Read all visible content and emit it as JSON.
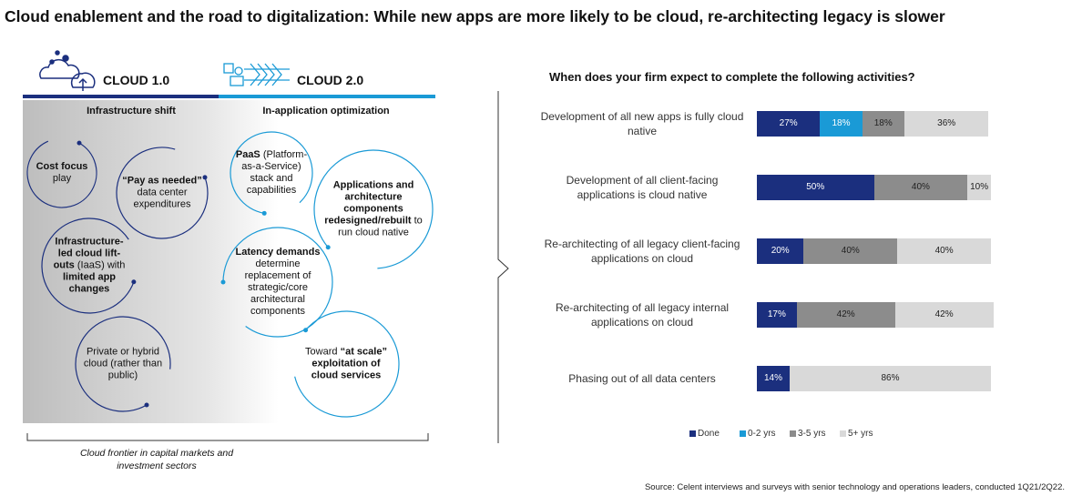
{
  "title": "Cloud enablement and the road to digitalization: While new apps are more likely to be cloud, re-architecting legacy is slower",
  "diagram": {
    "cloud1": {
      "label": "CLOUD 1.0",
      "subtitle": "Infrastructure shift"
    },
    "cloud2": {
      "label": "CLOUD 2.0",
      "subtitle": "In-application optimization"
    },
    "circles": [
      {
        "parts": [
          {
            "text": "Cost focus",
            "bold": true
          },
          {
            "text": " play"
          }
        ]
      },
      {
        "parts": [
          {
            "text": "“Pay as needed”",
            "bold": true
          },
          {
            "text": " data center expenditures"
          }
        ]
      },
      {
        "parts": [
          {
            "text": "Infrastructure-led cloud lift-outs",
            "bold": true
          },
          {
            "text": " (IaaS) with "
          },
          {
            "text": "limited app changes",
            "bold": true
          }
        ]
      },
      {
        "parts": [
          {
            "text": "Private or hybrid cloud (rather than public)"
          }
        ]
      },
      {
        "parts": [
          {
            "text": "PaaS",
            "bold": true
          },
          {
            "text": " (Platform-as-a-Service) stack and capabilities"
          }
        ]
      },
      {
        "parts": [
          {
            "text": "Applications and architecture components redesigned/rebuilt",
            "bold": true
          },
          {
            "text": " to run cloud native"
          }
        ]
      },
      {
        "parts": [
          {
            "text": "Latency demands",
            "bold": true
          },
          {
            "text": " determine replacement of strategic/core architectural components"
          }
        ]
      },
      {
        "parts": [
          {
            "text": "Toward "
          },
          {
            "text": "“at scale” exploitation of cloud services",
            "bold": true
          }
        ]
      }
    ],
    "footnote": "Cloud frontier in capital markets and investment sectors"
  },
  "chart_data": {
    "type": "bar",
    "orientation": "horizontal",
    "stacked": true,
    "title": "When does your firm expect to complete the following activities?",
    "categories": [
      "Development of all new apps is fully cloud native",
      "Development of all client-facing applications is cloud native",
      "Re-architecting of all legacy client-facing applications on cloud",
      "Re-architecting of all legacy internal applications on cloud",
      "Phasing out of all data centers"
    ],
    "series": [
      {
        "name": "Done",
        "color": "#1b2f7e",
        "values": [
          27,
          50,
          20,
          17,
          14
        ],
        "value_labels": [
          "27%",
          "50%",
          "20%",
          "17%",
          "14%"
        ]
      },
      {
        "name": "0-2 yrs",
        "color": "#1a9ad6",
        "values": [
          18,
          null,
          null,
          null,
          null
        ],
        "value_labels": [
          "18%",
          null,
          null,
          null,
          null
        ]
      },
      {
        "name": "3-5 yrs",
        "color": "#8c8c8c",
        "values": [
          18,
          40,
          40,
          42,
          null
        ],
        "value_labels": [
          "18%",
          "40%",
          "40%",
          "42%",
          null
        ]
      },
      {
        "name": "5+ yrs",
        "color": "#d9d9d9",
        "values": [
          36,
          10,
          40,
          42,
          86
        ],
        "value_labels": [
          "36%",
          "10%",
          "40%",
          "42%",
          "86%"
        ]
      }
    ],
    "xlim": [
      0,
      100
    ],
    "legend": "bottom"
  },
  "source": "Source: Celent interviews and surveys with senior technology and operations leaders, conducted 1Q21/2Q22."
}
